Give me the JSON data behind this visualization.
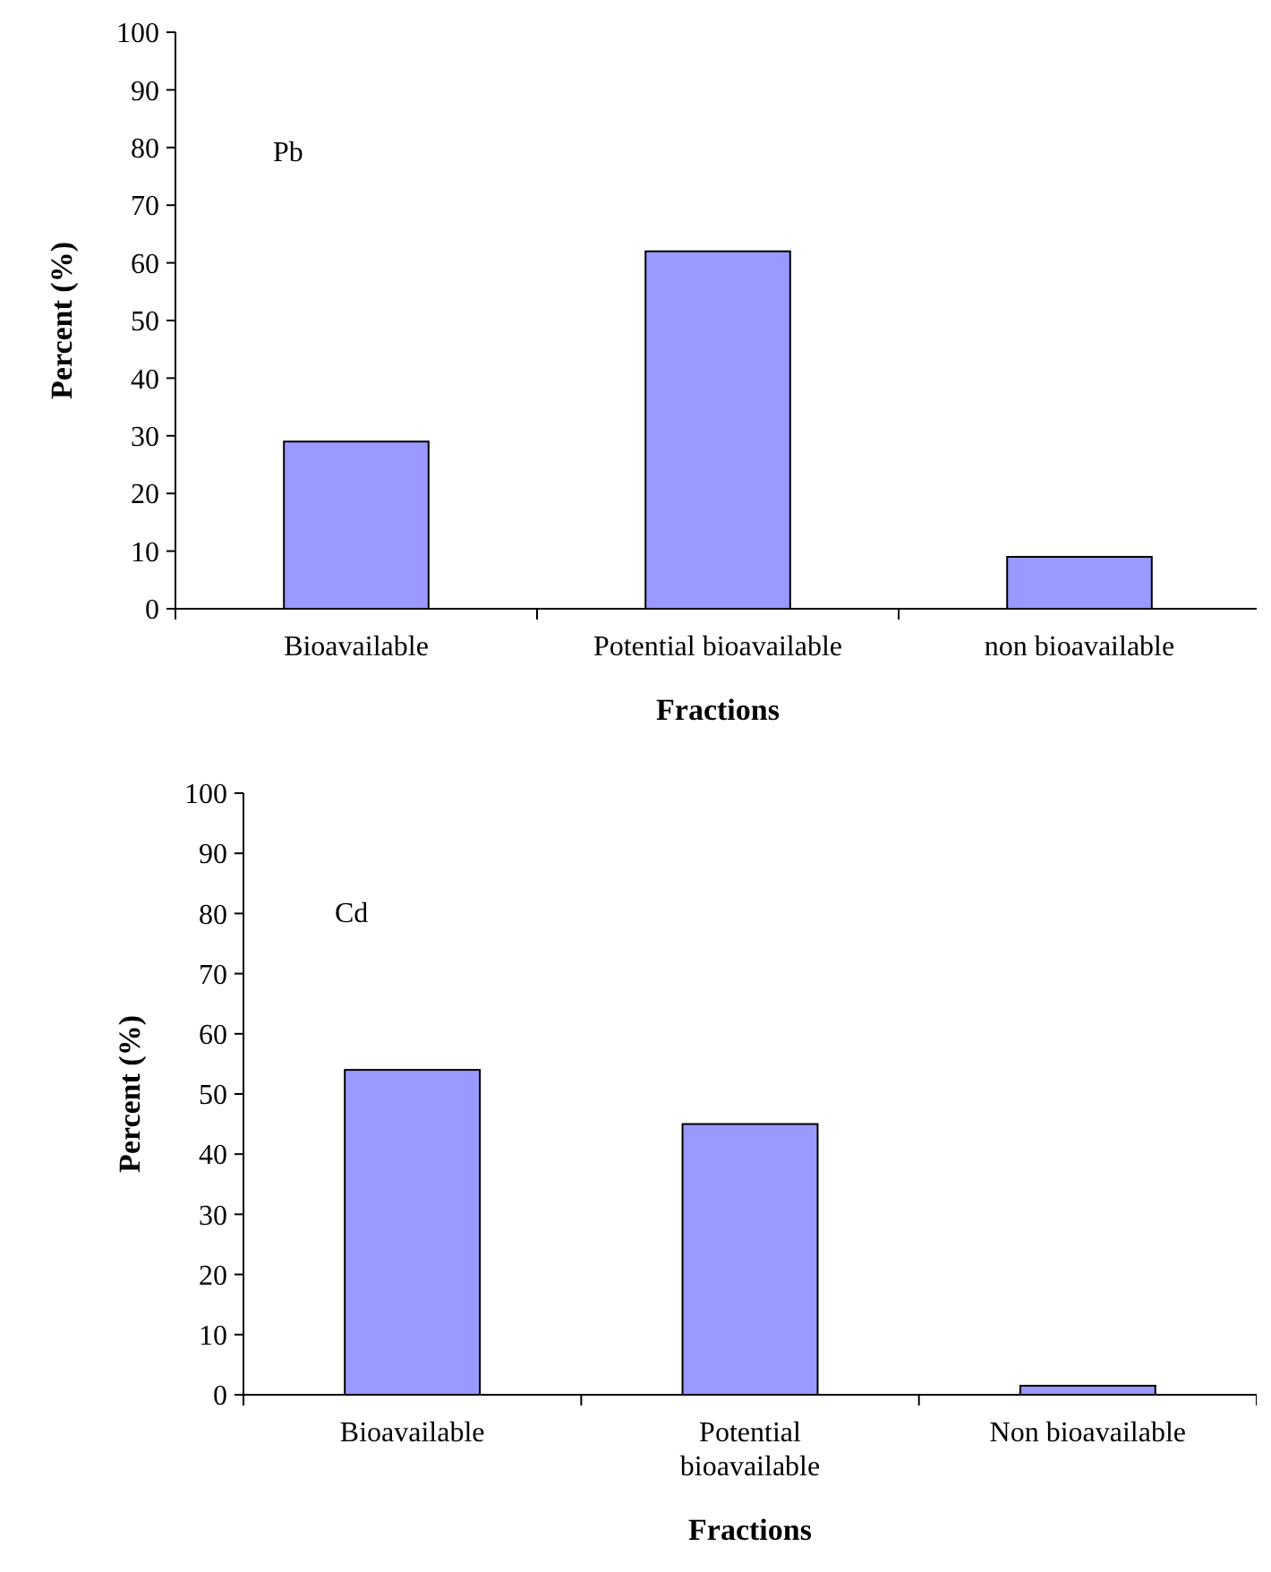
{
  "chart_data": [
    {
      "type": "bar",
      "xlabel": "Fractions",
      "ylabel": "Percent (%)",
      "annotations": [
        "Pb"
      ],
      "categories": [
        "Bioavailable",
        "Potential bioavailable",
        "non bioavailable"
      ],
      "values": [
        29,
        62,
        9
      ],
      "color": "#9999ff",
      "ylim": [
        0,
        100
      ],
      "yticks": [
        0,
        10,
        20,
        30,
        40,
        50,
        60,
        70,
        80,
        90,
        100
      ],
      "grid": false
    },
    {
      "type": "bar",
      "xlabel": "Fractions",
      "ylabel": "Percent (%)",
      "annotations": [
        "Cd"
      ],
      "categories": [
        "Bioavailable",
        "Potential bioavailable",
        "Non bioavailable"
      ],
      "values": [
        54,
        45,
        1.5
      ],
      "color": "#9999ff",
      "ylim": [
        0,
        100
      ],
      "yticks": [
        0,
        10,
        20,
        30,
        40,
        50,
        60,
        70,
        80,
        90,
        100
      ],
      "grid": false
    }
  ]
}
